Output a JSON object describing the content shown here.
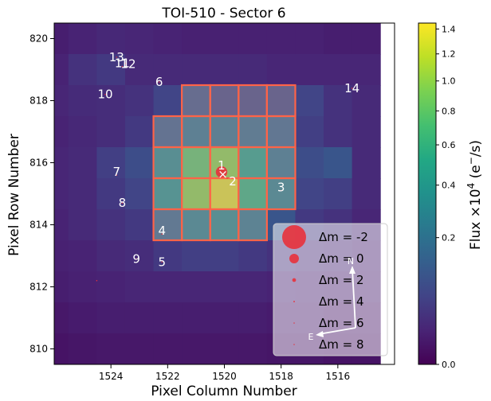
{
  "chart_data": {
    "type": "heatmap",
    "title": "TOI-510 - Sector 6",
    "xlabel": "Pixel Column Number",
    "ylabel": "Pixel Row Number",
    "colorbar_label": "Flux ×10",
    "colorbar_label_exp": "4",
    "colorbar_label_unit": " (e",
    "colorbar_label_unit_sup": "−",
    "colorbar_label_unit_end": "/s)",
    "x_range": [
      1526,
      1514
    ],
    "y_range": [
      809.5,
      820.5
    ],
    "x_ticks": [
      {
        "v": 1524,
        "label": "1524"
      },
      {
        "v": 1522,
        "label": "1522"
      },
      {
        "v": 1520,
        "label": "1520"
      },
      {
        "v": 1518,
        "label": "1518"
      },
      {
        "v": 1516,
        "label": "1516"
      }
    ],
    "y_ticks": [
      {
        "v": 810,
        "label": "810"
      },
      {
        "v": 812,
        "label": "812"
      },
      {
        "v": 814,
        "label": "814"
      },
      {
        "v": 816,
        "label": "816"
      },
      {
        "v": 818,
        "label": "818"
      },
      {
        "v": 820,
        "label": "820"
      }
    ],
    "colorbar_ticks": [
      {
        "v": 1.4,
        "label": "1.4"
      },
      {
        "v": 1.2,
        "label": "1.2"
      },
      {
        "v": 1.0,
        "label": "1.0"
      },
      {
        "v": 0.8,
        "label": "0.8"
      },
      {
        "v": 0.6,
        "label": "0.6"
      },
      {
        "v": 0.4,
        "label": "0.4"
      },
      {
        "v": 0.2,
        "label": "0.2"
      },
      {
        "v": 0.0,
        "label": "0.0"
      }
    ],
    "colorbar_scale": "sqrt",
    "colorbar_max": 1.45,
    "grid": false,
    "col_start": 1526,
    "row_start": 820,
    "flux": [
      [
        0.01,
        0.014,
        0.018,
        0.016,
        0.014,
        0.012,
        0.012,
        0.012,
        0.012,
        0.012,
        0.01,
        0.01
      ],
      [
        0.014,
        0.03,
        0.04,
        0.02,
        0.02,
        0.02,
        0.02,
        0.02,
        0.016,
        0.016,
        0.016,
        0.016
      ],
      [
        0.016,
        0.022,
        0.024,
        0.03,
        0.06,
        0.07,
        0.04,
        0.04,
        0.04,
        0.06,
        0.03,
        0.02
      ],
      [
        0.014,
        0.018,
        0.024,
        0.04,
        0.1,
        0.18,
        0.17,
        0.15,
        0.12,
        0.05,
        0.03,
        0.02
      ],
      [
        0.016,
        0.02,
        0.05,
        0.08,
        0.3,
        0.8,
        1.0,
        0.45,
        0.18,
        0.08,
        0.1,
        0.02
      ],
      [
        0.016,
        0.02,
        0.04,
        0.06,
        0.35,
        1.0,
        1.4,
        0.6,
        0.25,
        0.06,
        0.05,
        0.02
      ],
      [
        0.014,
        0.02,
        0.03,
        0.04,
        0.13,
        0.25,
        0.3,
        0.2,
        0.1,
        0.04,
        0.03,
        0.016
      ],
      [
        0.012,
        0.014,
        0.02,
        0.024,
        0.04,
        0.05,
        0.05,
        0.04,
        0.03,
        0.02,
        0.016,
        0.012
      ],
      [
        0.01,
        0.012,
        0.014,
        0.016,
        0.016,
        0.016,
        0.016,
        0.016,
        0.014,
        0.012,
        0.01,
        0.01
      ],
      [
        0.006,
        0.008,
        0.01,
        0.01,
        0.01,
        0.01,
        0.01,
        0.01,
        0.008,
        0.008,
        0.006,
        0.006
      ],
      [
        0.004,
        0.005,
        0.006,
        0.006,
        0.006,
        0.006,
        0.006,
        0.006,
        0.005,
        0.005,
        0.004,
        0.004
      ]
    ],
    "aperture_cells": [
      [
        1521,
        818
      ],
      [
        1520,
        818
      ],
      [
        1519,
        818
      ],
      [
        1518,
        818
      ],
      [
        1522,
        817
      ],
      [
        1521,
        817
      ],
      [
        1520,
        817
      ],
      [
        1519,
        817
      ],
      [
        1518,
        817
      ],
      [
        1522,
        816
      ],
      [
        1521,
        816
      ],
      [
        1520,
        816
      ],
      [
        1519,
        816
      ],
      [
        1518,
        816
      ],
      [
        1522,
        815
      ],
      [
        1521,
        815
      ],
      [
        1520,
        815
      ],
      [
        1519,
        815
      ],
      [
        1518,
        815
      ],
      [
        1522,
        814
      ],
      [
        1521,
        814
      ],
      [
        1520,
        814
      ],
      [
        1519,
        814
      ]
    ],
    "aperture_color": "#ff6347",
    "stars": [
      {
        "id": "1",
        "x": 1520.1,
        "y": 815.7,
        "dm": -0.4,
        "label_dx": 0,
        "label_dy": -8
      },
      {
        "id": "2",
        "x": 1519.9,
        "y": 815.5,
        "dm": 6,
        "label_dx": 7,
        "label_dy": 4
      },
      {
        "id": "3",
        "x": 1518.0,
        "y": 815.1,
        "dm": 6.5,
        "label_dx": 0,
        "label_dy": -4
      },
      {
        "id": "4",
        "x": 1522.2,
        "y": 813.7,
        "dm": 8.5,
        "label_dx": 0,
        "label_dy": -4
      },
      {
        "id": "5",
        "x": 1522.2,
        "y": 812.8,
        "dm": 10,
        "label_dx": 0,
        "label_dy": 0
      },
      {
        "id": "6",
        "x": 1522.3,
        "y": 818.6,
        "dm": 10,
        "label_dx": 0,
        "label_dy": 0
      },
      {
        "id": "7",
        "x": 1523.8,
        "y": 815.6,
        "dm": 7,
        "label_dx": 0,
        "label_dy": -4
      },
      {
        "id": "8",
        "x": 1523.6,
        "y": 814.7,
        "dm": 9,
        "label_dx": 0,
        "label_dy": 0
      },
      {
        "id": "9",
        "x": 1523.1,
        "y": 812.9,
        "dm": 10,
        "label_dx": 0,
        "label_dy": 0
      },
      {
        "id": "10",
        "x": 1524.2,
        "y": 818.2,
        "dm": 9,
        "label_dx": 0,
        "label_dy": 0
      },
      {
        "id": "11",
        "x": 1523.6,
        "y": 819.1,
        "dm": 7,
        "label_dx": 0,
        "label_dy": -4
      },
      {
        "id": "12",
        "x": 1523.5,
        "y": 819.2,
        "dm": 8,
        "label_dx": 4,
        "label_dy": 1
      },
      {
        "id": "13",
        "x": 1523.8,
        "y": 819.4,
        "dm": 8,
        "label_dx": 0,
        "label_dy": 0
      },
      {
        "id": "14",
        "x": 1515.5,
        "y": 818.4,
        "dm": 10,
        "label_dx": 0,
        "label_dy": 0
      },
      {
        "id": "",
        "x": 1524.5,
        "y": 812.2,
        "dm": 8,
        "label_dx": 0,
        "label_dy": 0
      }
    ],
    "star_color": "#e8313b",
    "legend": {
      "placement": "lower-right",
      "prefix": "Δm = ",
      "entries": [
        {
          "dm": -2,
          "label": "-2"
        },
        {
          "dm": 0,
          "label": "0"
        },
        {
          "dm": 2,
          "label": "2"
        },
        {
          "dm": 4,
          "label": "4"
        },
        {
          "dm": 6,
          "label": "6"
        },
        {
          "dm": 8,
          "label": "8"
        }
      ]
    },
    "compass": {
      "north_label": "N",
      "east_label": "E"
    }
  }
}
